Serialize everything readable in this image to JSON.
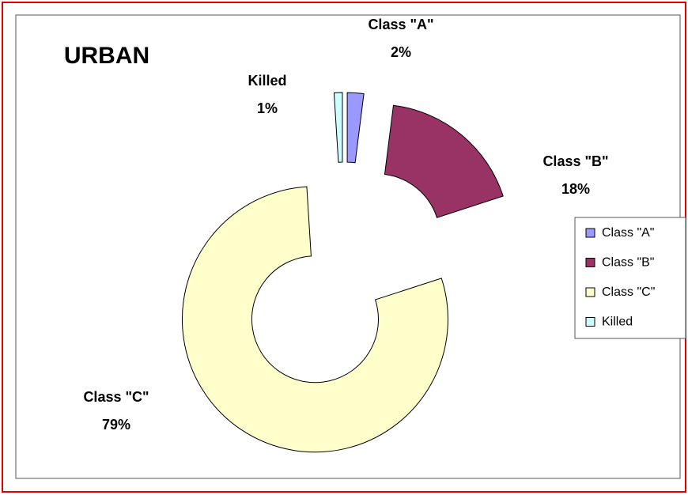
{
  "chart_data": {
    "type": "doughnut",
    "title": "URBAN",
    "categories": [
      "Class \"A\"",
      "Class \"B\"",
      "Class \"C\"",
      "Killed"
    ],
    "values": [
      2,
      18,
      79,
      1
    ],
    "value_labels": [
      "2%",
      "18%",
      "79%",
      "1%"
    ],
    "colors": [
      "#9999ff",
      "#993366",
      "#ffffcc",
      "#ccffff"
    ],
    "legend": "right"
  }
}
